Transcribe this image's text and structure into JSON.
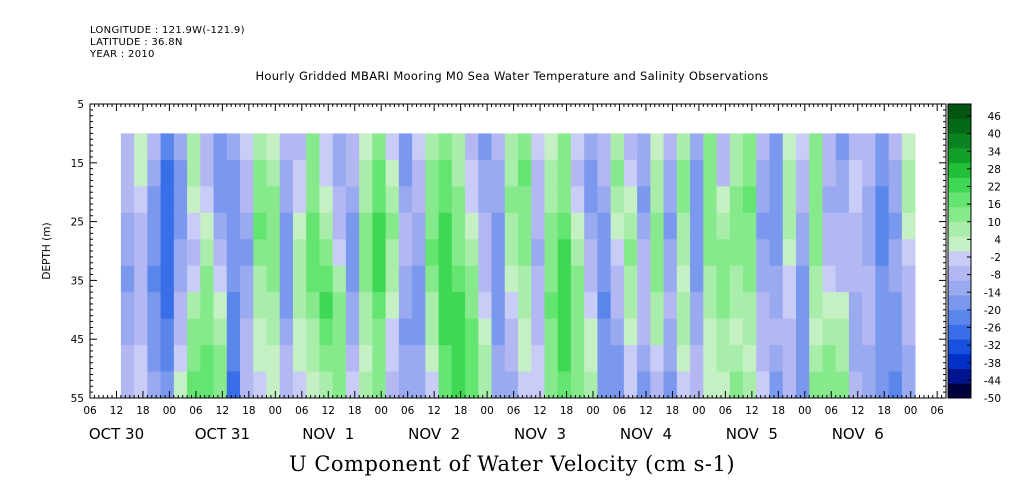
{
  "header": {
    "longitude": "LONGITUDE : 121.9W(-121.9)",
    "latitude": "LATITUDE : 36.8N",
    "year": "YEAR : 2010"
  },
  "chart_data": {
    "type": "heatmap",
    "title": "Hourly Gridded MBARI Mooring M0 Sea Water Temperature and Salinity Observations",
    "xlabel": "U Component of Water Velocity (cm s-1)",
    "ylabel": "DEPTH (m)",
    "y_ticks": [
      "5",
      "15",
      "25",
      "35",
      "45",
      "55"
    ],
    "ylim": [
      55,
      5
    ],
    "x_hour_ticks": [
      "06",
      "12",
      "18",
      "00",
      "06",
      "12",
      "18",
      "00",
      "06",
      "12",
      "18",
      "00",
      "06",
      "12",
      "18",
      "00",
      "06",
      "12",
      "18",
      "00",
      "06",
      "12",
      "18",
      "00",
      "06",
      "12",
      "18",
      "00",
      "06",
      "12",
      "18",
      "00",
      "06"
    ],
    "x_date_labels": [
      "OCT 30",
      "OCT 31",
      "NOV  1",
      "NOV  2",
      "NOV  3",
      "NOV  4",
      "NOV  5",
      "NOV  6"
    ],
    "xlim_hours": [
      0,
      194
    ],
    "data_depth_range": [
      10,
      55
    ],
    "data_start_hour": 7,
    "colorbar_labels": [
      "46",
      "40",
      "34",
      "28",
      "22",
      "16",
      "10",
      "4",
      "-2",
      "-8",
      "-14",
      "-20",
      "-26",
      "-32",
      "-38",
      "-44",
      "-50"
    ],
    "colorbar_range": [
      -50,
      50
    ],
    "colorbar_colors": [
      "#00003c",
      "#001490",
      "#0030c8",
      "#1850e0",
      "#3a6ee8",
      "#5a86ec",
      "#7a98ee",
      "#9aaaf0",
      "#b4b8f2",
      "#c8ccf6",
      "#c4f0c4",
      "#a8eeaa",
      "#86ea8c",
      "#64e470",
      "#3ed852",
      "#22c038",
      "#12a028",
      "#0a8420",
      "#056a18",
      "#025612"
    ],
    "columns": [
      {
        "hour": 7,
        "v": [
          -6,
          -8,
          -10,
          -12,
          -14,
          -16,
          -14,
          -12,
          -10,
          -8
        ]
      },
      {
        "hour": 10,
        "v": [
          4,
          2,
          -2,
          -6,
          -8,
          -10,
          -8,
          -6,
          -4,
          -2
        ]
      },
      {
        "hour": 13,
        "v": [
          -10,
          -12,
          -16,
          -18,
          -20,
          -22,
          -20,
          -18,
          -16,
          -14
        ]
      },
      {
        "hour": 16,
        "v": [
          -22,
          -26,
          -30,
          -30,
          -28,
          -28,
          -26,
          -24,
          -22,
          -20
        ]
      },
      {
        "hour": 19,
        "v": [
          -14,
          -16,
          -18,
          -16,
          -14,
          -12,
          -10,
          -8,
          -4,
          4
        ]
      },
      {
        "hour": 22,
        "v": [
          6,
          8,
          4,
          -4,
          -6,
          -4,
          8,
          12,
          14,
          16
        ]
      },
      {
        "hour": 25,
        "v": [
          -6,
          -8,
          -4,
          4,
          6,
          10,
          12,
          14,
          16,
          18
        ]
      },
      {
        "hour": 28,
        "v": [
          -20,
          -18,
          -16,
          -12,
          -8,
          -4,
          4,
          8,
          12,
          14
        ]
      },
      {
        "hour": 31,
        "v": [
          -14,
          -16,
          -18,
          -20,
          -20,
          -20,
          -22,
          -22,
          -24,
          -26
        ]
      },
      {
        "hour": 34,
        "v": [
          -4,
          -6,
          -10,
          -14,
          -16,
          -14,
          -12,
          -10,
          -8,
          -6
        ]
      },
      {
        "hour": 37,
        "v": [
          8,
          12,
          14,
          16,
          12,
          8,
          6,
          4,
          2,
          -2
        ]
      },
      {
        "hour": 40,
        "v": [
          4,
          8,
          10,
          12,
          14,
          12,
          8,
          6,
          4,
          2
        ]
      },
      {
        "hour": 43,
        "v": [
          -10,
          -12,
          -14,
          -16,
          -18,
          -20,
          -18,
          -14,
          -10,
          -6
        ]
      },
      {
        "hour": 46,
        "v": [
          -6,
          -4,
          -2,
          4,
          6,
          8,
          6,
          4,
          2,
          -2
        ]
      },
      {
        "hour": 49,
        "v": [
          10,
          12,
          14,
          16,
          18,
          16,
          12,
          8,
          6,
          4
        ]
      },
      {
        "hour": 52,
        "v": [
          -4,
          -2,
          4,
          8,
          14,
          18,
          20,
          16,
          12,
          8
        ]
      },
      {
        "hour": 55,
        "v": [
          -12,
          -14,
          -10,
          -6,
          -4,
          6,
          10,
          12,
          14,
          12
        ]
      },
      {
        "hour": 58,
        "v": [
          -8,
          -10,
          -14,
          -16,
          -18,
          -16,
          -14,
          -12,
          -8,
          -4
        ]
      },
      {
        "hour": 61,
        "v": [
          4,
          6,
          8,
          10,
          12,
          10,
          8,
          6,
          4,
          6
        ]
      },
      {
        "hour": 64,
        "v": [
          12,
          16,
          18,
          20,
          22,
          20,
          16,
          14,
          12,
          10
        ]
      },
      {
        "hour": 67,
        "v": [
          -4,
          4,
          8,
          10,
          8,
          6,
          4,
          -2,
          -4,
          -6
        ]
      },
      {
        "hour": 70,
        "v": [
          -16,
          -18,
          -14,
          -10,
          -8,
          -12,
          -14,
          -16,
          -14,
          -12
        ]
      },
      {
        "hour": 73,
        "v": [
          -4,
          -8,
          -10,
          -12,
          -14,
          -16,
          -18,
          -16,
          -14,
          -12
        ]
      },
      {
        "hour": 76,
        "v": [
          8,
          10,
          12,
          14,
          16,
          12,
          8,
          6,
          4,
          -2
        ]
      },
      {
        "hour": 79,
        "v": [
          14,
          16,
          18,
          20,
          22,
          24,
          22,
          20,
          18,
          16
        ]
      },
      {
        "hour": 82,
        "v": [
          6,
          8,
          10,
          12,
          14,
          18,
          20,
          22,
          24,
          22
        ]
      },
      {
        "hour": 85,
        "v": [
          -6,
          -4,
          -2,
          4,
          8,
          12,
          14,
          16,
          18,
          16
        ]
      },
      {
        "hour": 88,
        "v": [
          -16,
          -14,
          -12,
          -10,
          -8,
          -6,
          -4,
          4,
          6,
          8
        ]
      },
      {
        "hour": 91,
        "v": [
          -10,
          -12,
          -14,
          -16,
          -18,
          -20,
          -18,
          -16,
          -14,
          -12
        ]
      },
      {
        "hour": 94,
        "v": [
          6,
          8,
          10,
          8,
          6,
          4,
          -2,
          -6,
          -10,
          -12
        ]
      },
      {
        "hour": 97,
        "v": [
          14,
          16,
          14,
          12,
          10,
          8,
          6,
          4,
          2,
          -4
        ]
      },
      {
        "hour": 100,
        "v": [
          -4,
          -6,
          -8,
          -10,
          -12,
          -10,
          -8,
          -6,
          -4,
          -2
        ]
      },
      {
        "hour": 103,
        "v": [
          4,
          6,
          8,
          10,
          12,
          14,
          16,
          14,
          12,
          10
        ]
      },
      {
        "hour": 106,
        "v": [
          10,
          12,
          14,
          18,
          20,
          22,
          24,
          22,
          20,
          18
        ]
      },
      {
        "hour": 109,
        "v": [
          -4,
          -6,
          -2,
          4,
          8,
          10,
          12,
          14,
          12,
          10
        ]
      },
      {
        "hour": 112,
        "v": [
          -14,
          -16,
          -18,
          -14,
          -10,
          -6,
          -4,
          2,
          4,
          6
        ]
      },
      {
        "hour": 115,
        "v": [
          -8,
          -10,
          -12,
          -16,
          -18,
          -20,
          -22,
          -20,
          -18,
          -16
        ]
      },
      {
        "hour": 118,
        "v": [
          8,
          10,
          6,
          4,
          -2,
          -6,
          -10,
          -14,
          -16,
          -18
        ]
      },
      {
        "hour": 121,
        "v": [
          -6,
          -4,
          4,
          8,
          10,
          8,
          6,
          4,
          -2,
          -4
        ]
      },
      {
        "hour": 124,
        "v": [
          -12,
          -14,
          -16,
          -12,
          -8,
          -6,
          -8,
          -10,
          -14,
          -16
        ]
      },
      {
        "hour": 127,
        "v": [
          4,
          6,
          8,
          10,
          12,
          10,
          8,
          6,
          -2,
          -6
        ]
      },
      {
        "hour": 130,
        "v": [
          -10,
          -12,
          -14,
          -16,
          -14,
          -12,
          -10,
          -12,
          -14,
          -16
        ]
      },
      {
        "hour": 133,
        "v": [
          8,
          10,
          12,
          8,
          6,
          4,
          6,
          8,
          4,
          -2
        ]
      },
      {
        "hour": 136,
        "v": [
          -14,
          -16,
          -18,
          -20,
          -18,
          -16,
          -14,
          -12,
          -10,
          -8
        ]
      },
      {
        "hour": 139,
        "v": [
          10,
          12,
          14,
          12,
          10,
          8,
          6,
          4,
          2,
          4
        ]
      },
      {
        "hour": 142,
        "v": [
          -8,
          -6,
          4,
          8,
          10,
          12,
          10,
          8,
          6,
          4
        ]
      },
      {
        "hour": 145,
        "v": [
          6,
          8,
          10,
          12,
          10,
          8,
          6,
          4,
          8,
          12
        ]
      },
      {
        "hour": 148,
        "v": [
          12,
          14,
          16,
          14,
          12,
          10,
          8,
          6,
          4,
          6
        ]
      },
      {
        "hour": 151,
        "v": [
          -10,
          -12,
          -14,
          -16,
          -14,
          -12,
          -10,
          -8,
          -6,
          -4
        ]
      },
      {
        "hour": 154,
        "v": [
          -16,
          -18,
          -20,
          -18,
          -16,
          -14,
          -12,
          -10,
          -14,
          -16
        ]
      },
      {
        "hour": 157,
        "v": [
          4,
          6,
          8,
          6,
          4,
          -2,
          -4,
          -6,
          -8,
          -10
        ]
      },
      {
        "hour": 160,
        "v": [
          -4,
          -8,
          -10,
          -12,
          -14,
          -16,
          -18,
          -20,
          -18,
          -16
        ]
      },
      {
        "hour": 163,
        "v": [
          10,
          12,
          14,
          12,
          10,
          8,
          6,
          4,
          8,
          10
        ]
      },
      {
        "hour": 166,
        "v": [
          -8,
          -10,
          -12,
          -10,
          -8,
          -4,
          4,
          8,
          10,
          12
        ]
      },
      {
        "hour": 169,
        "v": [
          -16,
          -14,
          -12,
          -10,
          -8,
          -6,
          4,
          6,
          8,
          10
        ]
      },
      {
        "hour": 172,
        "v": [
          -6,
          -4,
          -2,
          -6,
          -8,
          -10,
          -12,
          -14,
          -12,
          -10
        ]
      },
      {
        "hour": 175,
        "v": [
          -8,
          -10,
          -12,
          -14,
          -12,
          -10,
          -8,
          -10,
          -12,
          -14
        ]
      },
      {
        "hour": 178,
        "v": [
          -18,
          -20,
          -22,
          -24,
          -22,
          -20,
          -18,
          -16,
          -18,
          -20
        ]
      },
      {
        "hour": 181,
        "v": [
          -10,
          -12,
          -14,
          -16,
          -14,
          -12,
          -16,
          -18,
          -20,
          -22
        ]
      },
      {
        "hour": 184,
        "v": [
          4,
          6,
          8,
          4,
          -2,
          -6,
          -8,
          -10,
          -12,
          -14
        ]
      }
    ]
  }
}
